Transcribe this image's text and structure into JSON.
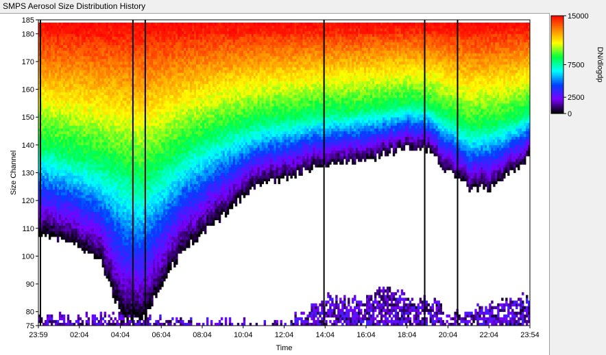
{
  "window": {
    "title": "SMPS Aerosol Size Distribution History"
  },
  "colors": {
    "background": "#ffffff",
    "axis": "#000000",
    "grid": "#d8d8d8",
    "gap_lines": "#000000"
  },
  "chart_data": {
    "type": "heatmap",
    "title": "SMPS Aerosol Size Distribution History",
    "xlabel": "Time",
    "ylabel": "Size Channel",
    "x_ticks": [
      "23:59",
      "02:04",
      "04:04",
      "06:04",
      "08:04",
      "10:04",
      "12:04",
      "14:04",
      "16:04",
      "18:04",
      "20:04",
      "22:04",
      "23:54"
    ],
    "y_ticks": [
      75,
      80,
      90,
      100,
      110,
      120,
      130,
      140,
      150,
      160,
      170,
      180,
      185
    ],
    "ylim": [
      75,
      185
    ],
    "xlim_hours": [
      0,
      23.92
    ],
    "colorbar": {
      "label": "DN/dlogdp",
      "ticks": [
        0,
        2500,
        7500,
        15000
      ],
      "tick_labels": [
        "0",
        "2500",
        "7500",
        "15000"
      ],
      "range": [
        0,
        15000
      ],
      "colormap": [
        "#000000",
        "#7a00ff",
        "#0040ff",
        "#00ffff",
        "#00ff40",
        "#ffff00",
        "#ff8000",
        "#ff0000"
      ]
    },
    "gap_lines_hours": [
      0.1,
      4.6,
      5.2,
      13.9,
      18.8,
      20.4
    ],
    "profile_hours": [
      0,
      1,
      2,
      3,
      4,
      5,
      6,
      7,
      8,
      9,
      10,
      11,
      12,
      13,
      14,
      15,
      16,
      17,
      18,
      19,
      20,
      21,
      22,
      23,
      23.92
    ],
    "lower_edge_channel": [
      109,
      106,
      104,
      98,
      80,
      76,
      90,
      102,
      108,
      114,
      122,
      127,
      128,
      131,
      133,
      134,
      135,
      137,
      139,
      138,
      130,
      124,
      125,
      130,
      136
    ],
    "mode_peak_channel": [
      140,
      138,
      136,
      134,
      132,
      128,
      133,
      138,
      142,
      145,
      147,
      149,
      150,
      151,
      152,
      152,
      153,
      154,
      155,
      154,
      150,
      146,
      147,
      149,
      152
    ],
    "upper_edge_channel": [
      184,
      184,
      184,
      184,
      184,
      184,
      184,
      184,
      184,
      184,
      184,
      184,
      184,
      184,
      184,
      184,
      184,
      184,
      184,
      184,
      184,
      184,
      184,
      184,
      184
    ],
    "nucleation_band": {
      "hours": [
        0,
        1,
        2,
        3,
        4,
        5,
        6,
        7,
        8,
        9,
        10,
        11,
        12,
        13,
        14,
        15,
        16,
        17,
        18,
        19,
        20,
        21,
        22,
        23,
        23.92
      ],
      "top_channel": [
        77,
        77,
        77,
        78,
        78,
        78,
        77,
        76,
        75,
        75,
        75,
        75,
        75,
        79,
        85,
        83,
        86,
        89,
        84,
        83,
        79,
        79,
        82,
        84,
        84
      ]
    }
  }
}
